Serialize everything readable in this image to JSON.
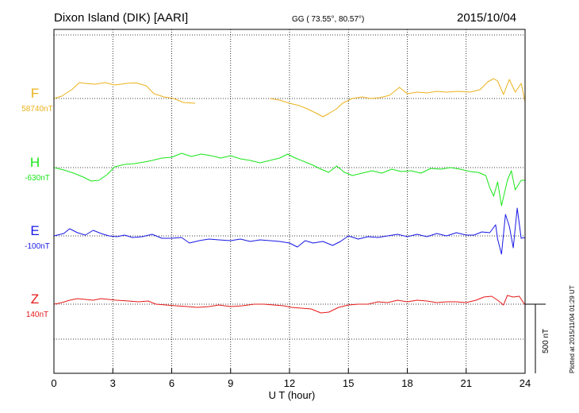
{
  "chart_data": {
    "type": "line",
    "title": "Dixon Island (DIK)  [AARI]",
    "coords": "GG ( 73.55°,  80.57°)",
    "date": "2015/10/04",
    "xlabel": "U T (hour)",
    "xlim": [
      0,
      24
    ],
    "xticks": [
      "0",
      "3",
      "6",
      "9",
      "12",
      "15",
      "18",
      "21",
      "24"
    ],
    "units_per_100px": 500,
    "scale_bar_label": "500 nT",
    "footer": "Plotted at 2015/11/04 01:29 UT",
    "grid": true,
    "series": [
      {
        "name": "F",
        "baseline_label": "58740nT",
        "color": "#ebb21c",
        "points": [
          [
            0,
            0
          ],
          [
            0.4,
            15
          ],
          [
            0.9,
            55
          ],
          [
            1.3,
            100
          ],
          [
            1.6,
            95
          ],
          [
            2.1,
            90
          ],
          [
            2.6,
            100
          ],
          [
            3.1,
            85
          ],
          [
            3.7,
            95
          ],
          [
            4.2,
            98
          ],
          [
            4.7,
            80
          ],
          [
            5.1,
            30
          ],
          [
            5.6,
            10
          ],
          [
            6.1,
            0
          ],
          [
            6.6,
            -25
          ],
          [
            7.2,
            -30
          ],
          null,
          [
            11.0,
            0
          ],
          [
            11.5,
            -10
          ],
          [
            12.0,
            -30
          ],
          [
            12.5,
            -45
          ],
          [
            12.9,
            -65
          ],
          [
            13.4,
            -95
          ],
          [
            13.7,
            -115
          ],
          [
            14.0,
            -95
          ],
          [
            14.4,
            -65
          ],
          [
            14.7,
            -30
          ],
          [
            15.2,
            0
          ],
          [
            15.7,
            10
          ],
          [
            16.1,
            0
          ],
          [
            16.6,
            5
          ],
          [
            17.1,
            20
          ],
          [
            17.6,
            70
          ],
          [
            18.0,
            30
          ],
          [
            18.5,
            40
          ],
          [
            19.0,
            35
          ],
          [
            19.5,
            45
          ],
          [
            20.0,
            40
          ],
          [
            20.6,
            45
          ],
          [
            21.2,
            40
          ],
          [
            21.7,
            55
          ],
          [
            22.1,
            105
          ],
          [
            22.4,
            125
          ],
          [
            22.6,
            110
          ],
          [
            22.9,
            25
          ],
          [
            23.2,
            120
          ],
          [
            23.5,
            40
          ],
          [
            23.8,
            95
          ],
          [
            24,
            -20
          ]
        ]
      },
      {
        "name": "H",
        "baseline_label": "-630nT",
        "color": "#19e619",
        "points": [
          [
            0,
            0
          ],
          [
            0.5,
            -15
          ],
          [
            1.0,
            -35
          ],
          [
            1.5,
            -60
          ],
          [
            1.9,
            -85
          ],
          [
            2.3,
            -80
          ],
          [
            2.7,
            -45
          ],
          [
            3.1,
            5
          ],
          [
            3.6,
            20
          ],
          [
            4.1,
            25
          ],
          [
            4.6,
            35
          ],
          [
            5.0,
            45
          ],
          [
            5.5,
            60
          ],
          [
            6.0,
            65
          ],
          [
            6.5,
            90
          ],
          [
            7.0,
            70
          ],
          [
            7.5,
            85
          ],
          [
            8.0,
            75
          ],
          [
            8.5,
            60
          ],
          [
            9.0,
            75
          ],
          [
            9.5,
            55
          ],
          [
            10.0,
            45
          ],
          [
            10.5,
            30
          ],
          [
            11.0,
            45
          ],
          [
            11.5,
            60
          ],
          [
            11.9,
            85
          ],
          [
            12.3,
            60
          ],
          [
            12.8,
            35
          ],
          [
            13.2,
            15
          ],
          [
            13.6,
            -10
          ],
          [
            14.0,
            -30
          ],
          [
            14.4,
            10
          ],
          [
            14.8,
            -30
          ],
          [
            15.2,
            -50
          ],
          [
            15.7,
            -35
          ],
          [
            16.2,
            -20
          ],
          [
            16.7,
            -35
          ],
          [
            17.2,
            -10
          ],
          [
            17.7,
            -25
          ],
          [
            18.2,
            -20
          ],
          [
            18.7,
            -35
          ],
          [
            19.2,
            -5
          ],
          [
            19.7,
            -10
          ],
          [
            20.2,
            0
          ],
          [
            20.7,
            -10
          ],
          [
            21.2,
            -25
          ],
          [
            21.6,
            -30
          ],
          [
            22.0,
            -50
          ],
          [
            22.2,
            -125
          ],
          [
            22.4,
            -180
          ],
          [
            22.6,
            -90
          ],
          [
            22.8,
            -240
          ],
          [
            23.1,
            -80
          ],
          [
            23.3,
            -20
          ],
          [
            23.5,
            -140
          ],
          [
            23.8,
            -80
          ],
          [
            24,
            -80
          ]
        ]
      },
      {
        "name": "E",
        "baseline_label": "-100nT",
        "color": "#1818e6",
        "points": [
          [
            0,
            0
          ],
          [
            0.5,
            15
          ],
          [
            0.8,
            45
          ],
          [
            1.2,
            20
          ],
          [
            1.6,
            5
          ],
          [
            2.0,
            35
          ],
          [
            2.4,
            15
          ],
          [
            2.8,
            0
          ],
          [
            3.2,
            -5
          ],
          [
            3.6,
            5
          ],
          [
            4.0,
            -10
          ],
          [
            4.5,
            -5
          ],
          [
            5.0,
            10
          ],
          [
            5.5,
            -15
          ],
          [
            6.0,
            -15
          ],
          [
            6.5,
            -10
          ],
          [
            6.9,
            -45
          ],
          [
            7.4,
            -30
          ],
          [
            7.9,
            -20
          ],
          [
            8.4,
            -25
          ],
          [
            9.0,
            -30
          ],
          [
            9.5,
            -20
          ],
          [
            10.0,
            -35
          ],
          [
            10.5,
            -25
          ],
          [
            11.0,
            -30
          ],
          [
            11.5,
            -35
          ],
          [
            12.0,
            -45
          ],
          [
            12.4,
            -70
          ],
          [
            12.8,
            -30
          ],
          [
            13.2,
            -45
          ],
          [
            13.7,
            -35
          ],
          [
            14.2,
            -60
          ],
          [
            14.6,
            -35
          ],
          [
            15.0,
            0
          ],
          [
            15.5,
            -20
          ],
          [
            16.0,
            -5
          ],
          [
            16.5,
            -10
          ],
          [
            17.0,
            0
          ],
          [
            17.5,
            10
          ],
          [
            18.0,
            -5
          ],
          [
            18.5,
            10
          ],
          [
            19.0,
            -5
          ],
          [
            19.5,
            15
          ],
          [
            20.0,
            0
          ],
          [
            20.5,
            20
          ],
          [
            21.0,
            5
          ],
          [
            21.4,
            5
          ],
          [
            21.8,
            25
          ],
          [
            22.2,
            20
          ],
          [
            22.5,
            70
          ],
          [
            22.6,
            -20
          ],
          [
            22.8,
            -115
          ],
          [
            23.0,
            135
          ],
          [
            23.2,
            60
          ],
          [
            23.4,
            -75
          ],
          [
            23.6,
            175
          ],
          [
            23.8,
            -15
          ],
          [
            24,
            -10
          ]
        ]
      },
      {
        "name": "Z",
        "baseline_label": "140nT",
        "color": "#e61818",
        "points": [
          [
            0,
            0
          ],
          [
            0.4,
            10
          ],
          [
            0.8,
            25
          ],
          [
            1.2,
            35
          ],
          [
            1.6,
            30
          ],
          [
            2.0,
            25
          ],
          [
            2.4,
            35
          ],
          [
            2.8,
            30
          ],
          [
            3.2,
            25
          ],
          [
            3.8,
            20
          ],
          [
            4.3,
            15
          ],
          [
            4.8,
            20
          ],
          [
            5.2,
            0
          ],
          [
            5.7,
            -5
          ],
          [
            6.2,
            -10
          ],
          [
            6.8,
            -15
          ],
          [
            7.3,
            -20
          ],
          [
            7.9,
            -15
          ],
          [
            8.4,
            -5
          ],
          [
            9.0,
            -15
          ],
          [
            9.6,
            -10
          ],
          [
            10.2,
            0
          ],
          [
            10.7,
            0
          ],
          [
            11.2,
            -5
          ],
          [
            11.7,
            -10
          ],
          [
            12.1,
            -20
          ],
          [
            12.6,
            -25
          ],
          [
            13.1,
            -30
          ],
          [
            13.6,
            -55
          ],
          [
            14.0,
            -50
          ],
          [
            14.5,
            -20
          ],
          [
            15.0,
            -5
          ],
          [
            15.5,
            0
          ],
          [
            16.0,
            0
          ],
          [
            16.5,
            15
          ],
          [
            17.0,
            10
          ],
          [
            17.5,
            25
          ],
          [
            18.0,
            15
          ],
          [
            18.5,
            25
          ],
          [
            19.0,
            20
          ],
          [
            19.5,
            10
          ],
          [
            20.0,
            15
          ],
          [
            20.5,
            15
          ],
          [
            21.0,
            10
          ],
          [
            21.5,
            25
          ],
          [
            21.9,
            45
          ],
          [
            22.3,
            50
          ],
          [
            22.6,
            25
          ],
          [
            22.9,
            -5
          ],
          [
            23.1,
            55
          ],
          [
            23.4,
            45
          ],
          [
            23.7,
            50
          ],
          [
            24,
            -5
          ]
        ]
      }
    ]
  }
}
